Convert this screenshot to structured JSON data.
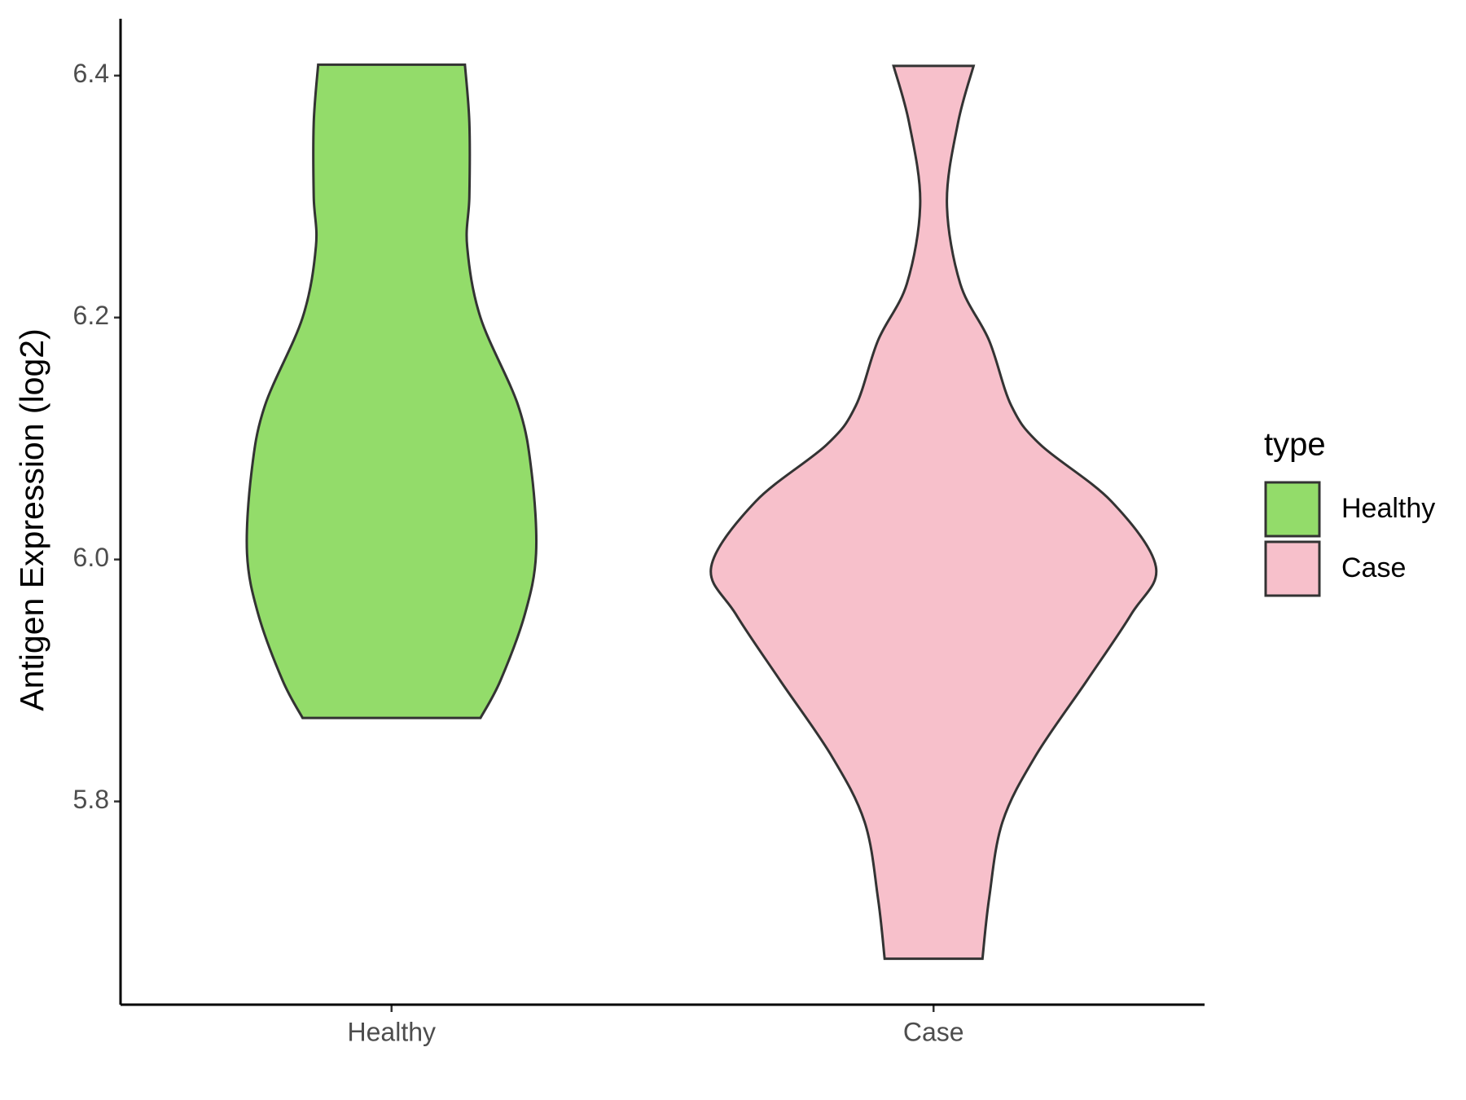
{
  "chart_data": {
    "type": "violin",
    "y_label": "Antigen Expression (log2)",
    "categories": [
      "Healthy",
      "Case"
    ],
    "ylim": [
      5.632,
      6.447
    ],
    "yticks": [
      5.8,
      {
        "value": 6,
        "label": "6.0"
      },
      6.2,
      6.4
    ],
    "legend_title": "type",
    "legend": "right",
    "series": [
      {
        "name": "Healthy",
        "color": "#93dc6a",
        "y": [
          6.409,
          6.361,
          6.3,
          6.259,
          6.2,
          6.127,
          6.072,
          6.005,
          5.955,
          5.9,
          5.869
        ],
        "density": [
          0.33,
          0.35,
          0.35,
          0.34,
          0.4,
          0.57,
          0.63,
          0.65,
          0.6,
          0.49,
          0.4
        ]
      },
      {
        "name": "Case",
        "color": "#f7c0cb",
        "y": [
          6.408,
          6.361,
          6.295,
          6.228,
          6.181,
          6.127,
          6.095,
          6.048,
          5.994,
          5.955,
          5.9,
          5.838,
          5.783,
          5.72,
          5.67
        ],
        "density": [
          0.18,
          0.11,
          0.06,
          0.12,
          0.25,
          0.35,
          0.48,
          0.8,
          1.0,
          0.89,
          0.69,
          0.46,
          0.31,
          0.25,
          0.22
        ]
      }
    ]
  }
}
